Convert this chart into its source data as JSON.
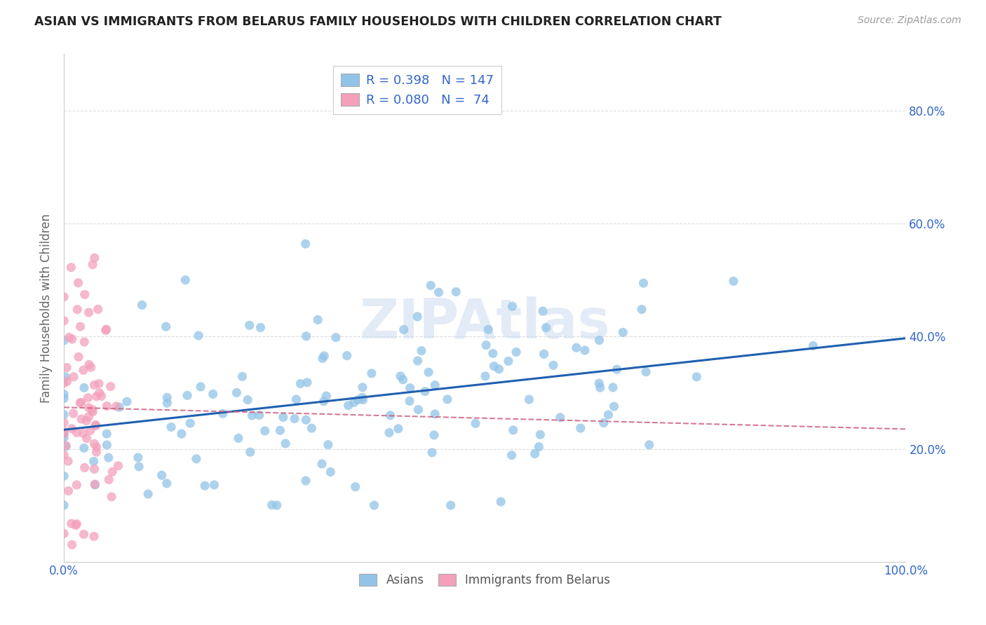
{
  "title": "ASIAN VS IMMIGRANTS FROM BELARUS FAMILY HOUSEHOLDS WITH CHILDREN CORRELATION CHART",
  "source": "Source: ZipAtlas.com",
  "ylabel": "Family Households with Children",
  "watermark": "ZIPAtlas",
  "legend_blue_R": "0.398",
  "legend_blue_N": "147",
  "legend_pink_R": "0.080",
  "legend_pink_N": " 74",
  "legend_label_blue": "Asians",
  "legend_label_pink": "Immigrants from Belarus",
  "blue_color": "#92C4E8",
  "pink_color": "#F4A0BB",
  "blue_line_color": "#2060B0",
  "pink_line_color": "#D06080",
  "text_color": "#3366CC",
  "xlim": [
    0.0,
    1.0
  ],
  "ylim": [
    0.0,
    0.9
  ],
  "yticks": [
    0.2,
    0.4,
    0.6,
    0.8
  ],
  "ytick_labels": [
    "20.0%",
    "40.0%",
    "60.0%",
    "80.0%"
  ],
  "blue_R": 0.398,
  "pink_R": 0.08,
  "blue_N": 147,
  "pink_N": 74,
  "background_color": "#FFFFFF",
  "grid_color": "#DDDDDD"
}
